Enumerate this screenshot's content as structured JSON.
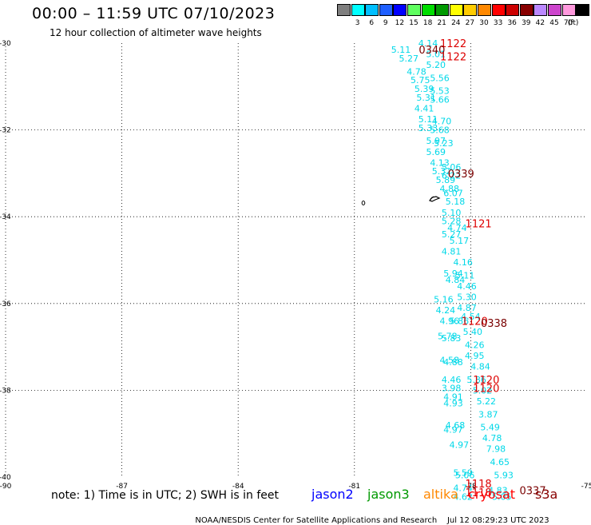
{
  "header": {
    "title": "00:00 – 11:59 UTC 07/10/2023",
    "subtitle": "12 hour collection of altimeter wave heights"
  },
  "legend": {
    "unit": "(ft)",
    "items": [
      {
        "label": "",
        "color": "#7f7f7f"
      },
      {
        "label": "3",
        "color": "#00ffff"
      },
      {
        "label": "6",
        "color": "#00bfff"
      },
      {
        "label": "9",
        "color": "#1e5fff"
      },
      {
        "label": "12",
        "color": "#0000ff"
      },
      {
        "label": "15",
        "color": "#5fff5f"
      },
      {
        "label": "18",
        "color": "#00dd00"
      },
      {
        "label": "21",
        "color": "#009900"
      },
      {
        "label": "24",
        "color": "#ffff00"
      },
      {
        "label": "27",
        "color": "#ffcc00"
      },
      {
        "label": "30",
        "color": "#ff8800"
      },
      {
        "label": "33",
        "color": "#ff0000"
      },
      {
        "label": "36",
        "color": "#cc0000"
      },
      {
        "label": "39",
        "color": "#880000"
      },
      {
        "label": "42",
        "color": "#bb88ff"
      },
      {
        "label": "45",
        "color": "#cc44cc"
      },
      {
        "label": "70",
        "color": "#ff99dd"
      },
      {
        "label": "",
        "color": "#000000"
      }
    ]
  },
  "axes": {
    "lon_ticks": [
      -90,
      -87,
      -84,
      -81,
      -78,
      -75
    ],
    "lat_ticks": [
      -30,
      -32,
      -34,
      -36,
      -38,
      -40
    ]
  },
  "map_data": {
    "swh_color": "#00d8e8",
    "time_color": "#dd0000",
    "time_color_dark": "#7a0000",
    "swh": [
      {
        "lat": -30.0,
        "lon": -79.1,
        "v": "4.14"
      },
      {
        "lat": -30.15,
        "lon": -79.8,
        "v": "5.11"
      },
      {
        "lat": -30.25,
        "lon": -78.9,
        "v": "5.01"
      },
      {
        "lat": -30.35,
        "lon": -79.6,
        "v": "5.27"
      },
      {
        "lat": -30.5,
        "lon": -78.9,
        "v": "5.20"
      },
      {
        "lat": -30.65,
        "lon": -79.4,
        "v": "4.78"
      },
      {
        "lat": -30.8,
        "lon": -78.8,
        "v": "5.56"
      },
      {
        "lat": -30.85,
        "lon": -79.3,
        "v": "5.75"
      },
      {
        "lat": -31.05,
        "lon": -79.2,
        "v": "5.39"
      },
      {
        "lat": -31.1,
        "lon": -78.8,
        "v": "5.53"
      },
      {
        "lat": -31.25,
        "lon": -79.15,
        "v": "5.31"
      },
      {
        "lat": -31.3,
        "lon": -78.8,
        "v": "5.66"
      },
      {
        "lat": -31.5,
        "lon": -79.2,
        "v": "4.41"
      },
      {
        "lat": -31.75,
        "lon": -79.1,
        "v": "5.11"
      },
      {
        "lat": -31.8,
        "lon": -78.75,
        "v": "4.70"
      },
      {
        "lat": -31.95,
        "lon": -79.1,
        "v": "5.33"
      },
      {
        "lat": -32.0,
        "lon": -78.8,
        "v": "5.68"
      },
      {
        "lat": -32.25,
        "lon": -78.9,
        "v": "5.97"
      },
      {
        "lat": -32.3,
        "lon": -78.7,
        "v": "5.23"
      },
      {
        "lat": -32.5,
        "lon": -78.9,
        "v": "5.69"
      },
      {
        "lat": -32.75,
        "lon": -78.8,
        "v": "4.13"
      },
      {
        "lat": -32.85,
        "lon": -78.5,
        "v": "5.06"
      },
      {
        "lat": -32.95,
        "lon": -78.75,
        "v": "5.32"
      },
      {
        "lat": -33.05,
        "lon": -78.5,
        "v": "6.22"
      },
      {
        "lat": -33.15,
        "lon": -78.65,
        "v": "5.89"
      },
      {
        "lat": -33.35,
        "lon": -78.55,
        "v": "4.88"
      },
      {
        "lat": -33.45,
        "lon": -78.45,
        "v": "6.07"
      },
      {
        "lat": -33.65,
        "lon": -78.4,
        "v": "5.18"
      },
      {
        "lat": -33.9,
        "lon": -78.5,
        "v": "5.10"
      },
      {
        "lat": -34.1,
        "lon": -78.5,
        "v": "5.28"
      },
      {
        "lat": -34.25,
        "lon": -78.35,
        "v": "4.74"
      },
      {
        "lat": -34.4,
        "lon": -78.5,
        "v": "5.27"
      },
      {
        "lat": -34.55,
        "lon": -78.3,
        "v": "5.17"
      },
      {
        "lat": -34.8,
        "lon": -78.5,
        "v": "4.81"
      },
      {
        "lat": -35.05,
        "lon": -78.2,
        "v": "4.16"
      },
      {
        "lat": -35.3,
        "lon": -78.45,
        "v": "5.94"
      },
      {
        "lat": -35.35,
        "lon": -78.15,
        "v": "5.11"
      },
      {
        "lat": -35.45,
        "lon": -78.4,
        "v": "4.84"
      },
      {
        "lat": -35.6,
        "lon": -78.1,
        "v": "4.46"
      },
      {
        "lat": -35.85,
        "lon": -78.1,
        "v": "5.30"
      },
      {
        "lat": -35.9,
        "lon": -78.7,
        "v": "5.16"
      },
      {
        "lat": -36.1,
        "lon": -78.1,
        "v": "4.87"
      },
      {
        "lat": -36.15,
        "lon": -78.65,
        "v": "4.24"
      },
      {
        "lat": -36.3,
        "lon": -78.0,
        "v": "4.54"
      },
      {
        "lat": -36.4,
        "lon": -78.55,
        "v": "4.96"
      },
      {
        "lat": -36.4,
        "lon": -78.3,
        "v": "5.86"
      },
      {
        "lat": -36.65,
        "lon": -77.95,
        "v": "5.40"
      },
      {
        "lat": -36.75,
        "lon": -78.6,
        "v": "5.78"
      },
      {
        "lat": -36.8,
        "lon": -78.5,
        "v": "5.83"
      },
      {
        "lat": -36.95,
        "lon": -77.9,
        "v": "4.26"
      },
      {
        "lat": -37.2,
        "lon": -77.9,
        "v": "4.95"
      },
      {
        "lat": -37.3,
        "lon": -78.55,
        "v": "4.58"
      },
      {
        "lat": -37.35,
        "lon": -78.45,
        "v": "4.88"
      },
      {
        "lat": -37.45,
        "lon": -77.75,
        "v": "4.84"
      },
      {
        "lat": -37.75,
        "lon": -78.5,
        "v": "4.46"
      },
      {
        "lat": -37.75,
        "lon": -77.85,
        "v": "5.86"
      },
      {
        "lat": -37.95,
        "lon": -78.5,
        "v": "3.98"
      },
      {
        "lat": -38.0,
        "lon": -77.7,
        "v": "5.02"
      },
      {
        "lat": -38.15,
        "lon": -78.45,
        "v": "4.91"
      },
      {
        "lat": -38.25,
        "lon": -77.6,
        "v": "5.22"
      },
      {
        "lat": -38.3,
        "lon": -78.45,
        "v": "4.93"
      },
      {
        "lat": -38.55,
        "lon": -77.55,
        "v": "3.87"
      },
      {
        "lat": -38.8,
        "lon": -78.4,
        "v": "4.68"
      },
      {
        "lat": -38.85,
        "lon": -77.5,
        "v": "5.49"
      },
      {
        "lat": -38.9,
        "lon": -78.45,
        "v": "4.97"
      },
      {
        "lat": -39.1,
        "lon": -77.45,
        "v": "4.78"
      },
      {
        "lat": -39.25,
        "lon": -78.3,
        "v": "4.97"
      },
      {
        "lat": -39.35,
        "lon": -77.35,
        "v": "7.98"
      },
      {
        "lat": -39.65,
        "lon": -77.25,
        "v": "4.65"
      },
      {
        "lat": -39.9,
        "lon": -78.2,
        "v": "5.59"
      },
      {
        "lat": -39.95,
        "lon": -78.15,
        "v": "5.06"
      },
      {
        "lat": -39.95,
        "lon": -77.15,
        "v": "5.93"
      },
      {
        "lat": -40.25,
        "lon": -78.2,
        "v": "4.74"
      },
      {
        "lat": -40.3,
        "lon": -77.3,
        "v": "4.83"
      },
      {
        "lat": -40.45,
        "lon": -78.2,
        "v": "4.62"
      },
      {
        "lat": -40.45,
        "lon": -77.2,
        "v": "5.05"
      }
    ],
    "times": [
      {
        "lat": -30.0,
        "lon": -78.45,
        "v": "1122",
        "dark": false
      },
      {
        "lat": -30.15,
        "lon": -79.0,
        "v": "0340",
        "dark": true
      },
      {
        "lat": -30.3,
        "lon": -78.45,
        "v": "1122",
        "dark": false
      },
      {
        "lat": -33.0,
        "lon": -78.25,
        "v": "0339",
        "dark": true
      },
      {
        "lat": -34.15,
        "lon": -77.8,
        "v": "1121",
        "dark": false
      },
      {
        "lat": -36.4,
        "lon": -77.9,
        "v": "1120",
        "dark": false
      },
      {
        "lat": -36.45,
        "lon": -77.4,
        "v": "0338",
        "dark": true
      },
      {
        "lat": -37.75,
        "lon": -77.6,
        "v": "1120",
        "dark": false
      },
      {
        "lat": -37.95,
        "lon": -77.6,
        "v": "1120",
        "dark": false
      },
      {
        "lat": -40.15,
        "lon": -77.8,
        "v": "1118",
        "dark": false
      },
      {
        "lat": -40.35,
        "lon": -77.8,
        "v": "1118",
        "dark": false
      },
      {
        "lat": -40.3,
        "lon": -76.4,
        "v": "0337",
        "dark": true
      }
    ]
  },
  "footer": {
    "note": "note: 1) Time is in UTC; 2) SWH is in feet",
    "satellites": [
      {
        "name": "jason2",
        "color": "#0000ff"
      },
      {
        "name": "jason3",
        "color": "#009900"
      },
      {
        "name": "altika",
        "color": "#ff8800"
      },
      {
        "name": "cryosat",
        "color": "#ff0000"
      },
      {
        "name": "s3a",
        "color": "#880000"
      }
    ],
    "credit": "NOAA/NESDIS Center for Satellite Applications and Research",
    "timestamp": "Jul 12 08:29:23 UTC 2023"
  }
}
